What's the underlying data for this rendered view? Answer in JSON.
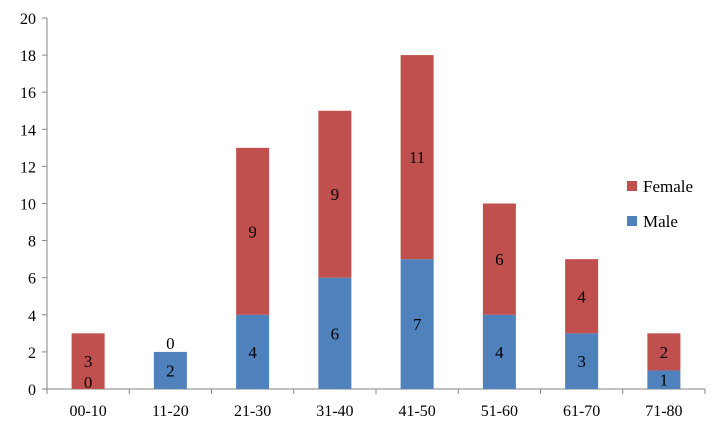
{
  "chart_data": {
    "type": "bar",
    "stacked": true,
    "categories": [
      "00-10",
      "11-20",
      "21-30",
      "31-40",
      "41-50",
      "51-60",
      "61-70",
      "71-80"
    ],
    "series": [
      {
        "name": "Male",
        "color": "#4F81BD",
        "values": [
          0,
          2,
          4,
          6,
          7,
          4,
          3,
          1
        ]
      },
      {
        "name": "Female",
        "color": "#C0504D",
        "values": [
          3,
          0,
          9,
          9,
          11,
          6,
          4,
          2
        ]
      }
    ],
    "ylim": [
      0,
      20
    ],
    "yticks": [
      0,
      2,
      4,
      6,
      8,
      10,
      12,
      14,
      16,
      18,
      20
    ],
    "grid": false,
    "legend": "right",
    "legend_order": [
      "Female",
      "Male"
    ],
    "title": "",
    "xlabel": "",
    "ylabel": ""
  }
}
